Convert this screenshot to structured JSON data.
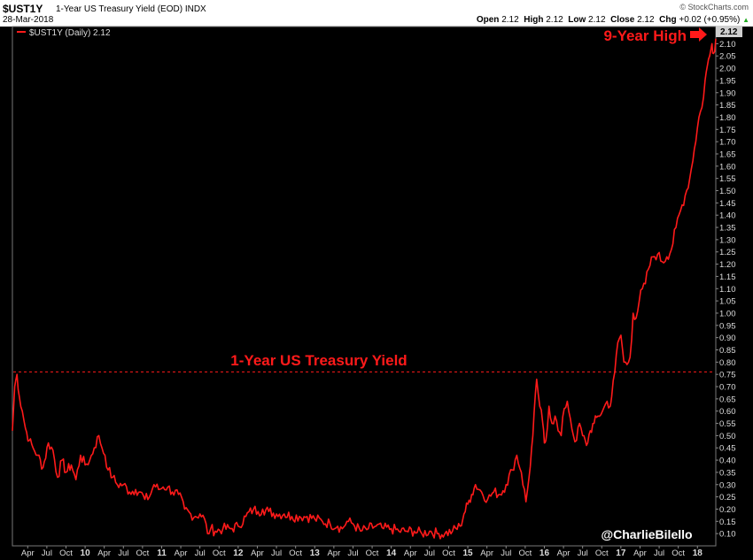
{
  "header": {
    "symbol": "$UST1Y",
    "description": "1-Year US Treasury Yield (EOD)",
    "exchange": "INDX",
    "date": "28-Mar-2018",
    "brand": "© StockCharts.com",
    "open_label": "Open",
    "open": "2.12",
    "high_label": "High",
    "high": "2.12",
    "low_label": "Low",
    "low": "2.12",
    "close_label": "Close",
    "close": "2.12",
    "chg_label": "Chg",
    "chg": "+0.02 (+0.95%)"
  },
  "legend": {
    "label": "$UST1Y (Daily) 2.12"
  },
  "annotations": {
    "high_label": "9-Year High",
    "reference_label": "1-Year US Treasury Yield",
    "last_value": "2.12",
    "credit": "@CharlieBilello"
  },
  "colors": {
    "series": "#ff1a1a",
    "background": "#000000",
    "price_box": "#cfcfcf"
  },
  "chart_data": {
    "type": "line",
    "title": "$UST1Y 1-Year US Treasury Yield (EOD)",
    "ylim": [
      0.05,
      2.17
    ],
    "grid": false,
    "legend_position": "top-left",
    "y_ticks": [
      "0.10",
      "0.15",
      "0.20",
      "0.25",
      "0.30",
      "0.35",
      "0.40",
      "0.45",
      "0.50",
      "0.55",
      "0.60",
      "0.65",
      "0.70",
      "0.75",
      "0.80",
      "0.85",
      "0.90",
      "0.95",
      "1.00",
      "1.05",
      "1.10",
      "1.15",
      "1.20",
      "1.25",
      "1.30",
      "1.35",
      "1.40",
      "1.45",
      "1.50",
      "1.55",
      "1.60",
      "1.65",
      "1.70",
      "1.75",
      "1.80",
      "1.85",
      "1.90",
      "1.95",
      "2.00",
      "2.05",
      "2.10"
    ],
    "x_ticks": [
      {
        "label": "Apr",
        "t": 2009.25
      },
      {
        "label": "Jul",
        "t": 2009.5
      },
      {
        "label": "Oct",
        "t": 2009.75
      },
      {
        "label": "10",
        "t": 2010.0,
        "year": true
      },
      {
        "label": "Apr",
        "t": 2010.25
      },
      {
        "label": "Jul",
        "t": 2010.5
      },
      {
        "label": "Oct",
        "t": 2010.75
      },
      {
        "label": "11",
        "t": 2011.0,
        "year": true
      },
      {
        "label": "Apr",
        "t": 2011.25
      },
      {
        "label": "Jul",
        "t": 2011.5
      },
      {
        "label": "Oct",
        "t": 2011.75
      },
      {
        "label": "12",
        "t": 2012.0,
        "year": true
      },
      {
        "label": "Apr",
        "t": 2012.25
      },
      {
        "label": "Jul",
        "t": 2012.5
      },
      {
        "label": "Oct",
        "t": 2012.75
      },
      {
        "label": "13",
        "t": 2013.0,
        "year": true
      },
      {
        "label": "Apr",
        "t": 2013.25
      },
      {
        "label": "Jul",
        "t": 2013.5
      },
      {
        "label": "Oct",
        "t": 2013.75
      },
      {
        "label": "14",
        "t": 2014.0,
        "year": true
      },
      {
        "label": "Apr",
        "t": 2014.25
      },
      {
        "label": "Jul",
        "t": 2014.5
      },
      {
        "label": "Oct",
        "t": 2014.75
      },
      {
        "label": "15",
        "t": 2015.0,
        "year": true
      },
      {
        "label": "Apr",
        "t": 2015.25
      },
      {
        "label": "Jul",
        "t": 2015.5
      },
      {
        "label": "Oct",
        "t": 2015.75
      },
      {
        "label": "16",
        "t": 2016.0,
        "year": true
      },
      {
        "label": "Apr",
        "t": 2016.25
      },
      {
        "label": "Jul",
        "t": 2016.5
      },
      {
        "label": "Oct",
        "t": 2016.75
      },
      {
        "label": "17",
        "t": 2017.0,
        "year": true
      },
      {
        "label": "Apr",
        "t": 2017.25
      },
      {
        "label": "Jul",
        "t": 2017.5
      },
      {
        "label": "Oct",
        "t": 2017.75
      },
      {
        "label": "18",
        "t": 2018.0,
        "year": true
      }
    ],
    "xlim": [
      2009.05,
      2018.24
    ],
    "reference_line": {
      "value": 0.76
    },
    "series": [
      {
        "name": "$UST1Y (Daily)",
        "x": [
          2009.05,
          2009.08,
          2009.11,
          2009.14,
          2009.18,
          2009.22,
          2009.27,
          2009.32,
          2009.38,
          2009.45,
          2009.52,
          2009.58,
          2009.64,
          2009.7,
          2009.75,
          2009.82,
          2009.88,
          2009.94,
          2010.0,
          2010.06,
          2010.12,
          2010.18,
          2010.22,
          2010.26,
          2010.3,
          2010.36,
          2010.42,
          2010.5,
          2010.58,
          2010.66,
          2010.72,
          2010.78,
          2010.84,
          2010.9,
          2010.96,
          2011.02,
          2011.08,
          2011.14,
          2011.22,
          2011.3,
          2011.38,
          2011.44,
          2011.5,
          2011.56,
          2011.6,
          2011.64,
          2011.7,
          2011.8,
          2011.9,
          2012.0,
          2012.1,
          2012.2,
          2012.26,
          2012.32,
          2012.4,
          2012.5,
          2012.6,
          2012.7,
          2012.8,
          2012.9,
          2013.0,
          2013.1,
          2013.2,
          2013.3,
          2013.36,
          2013.42,
          2013.5,
          2013.6,
          2013.7,
          2013.8,
          2013.9,
          2014.0,
          2014.1,
          2014.2,
          2014.3,
          2014.4,
          2014.5,
          2014.6,
          2014.7,
          2014.8,
          2014.9,
          2014.95,
          2015.0,
          2015.05,
          2015.1,
          2015.18,
          2015.26,
          2015.34,
          2015.42,
          2015.5,
          2015.58,
          2015.64,
          2015.7,
          2015.76,
          2015.8,
          2015.85,
          2015.9,
          2015.94,
          2015.98,
          2016.0,
          2016.02,
          2016.06,
          2016.1,
          2016.14,
          2016.18,
          2016.22,
          2016.26,
          2016.3,
          2016.34,
          2016.38,
          2016.42,
          2016.46,
          2016.5,
          2016.55,
          2016.6,
          2016.65,
          2016.7,
          2016.76,
          2016.82,
          2016.86,
          2016.88,
          2016.92,
          2016.96,
          2017.0,
          2017.04,
          2017.08,
          2017.12,
          2017.16,
          2017.2,
          2017.24,
          2017.28,
          2017.32,
          2017.36,
          2017.42,
          2017.48,
          2017.54,
          2017.6,
          2017.66,
          2017.72,
          2017.78,
          2017.84,
          2017.9,
          2017.96,
          2018.02,
          2018.06,
          2018.1,
          2018.13,
          2018.16,
          2018.19,
          2018.21,
          2018.24
        ],
        "values": [
          0.52,
          0.7,
          0.75,
          0.66,
          0.6,
          0.53,
          0.48,
          0.45,
          0.42,
          0.37,
          0.47,
          0.44,
          0.33,
          0.4,
          0.35,
          0.38,
          0.32,
          0.42,
          0.38,
          0.4,
          0.45,
          0.5,
          0.45,
          0.42,
          0.36,
          0.33,
          0.3,
          0.3,
          0.27,
          0.28,
          0.27,
          0.24,
          0.25,
          0.3,
          0.28,
          0.29,
          0.29,
          0.27,
          0.26,
          0.2,
          0.18,
          0.17,
          0.18,
          0.16,
          0.1,
          0.12,
          0.11,
          0.12,
          0.12,
          0.13,
          0.17,
          0.2,
          0.19,
          0.2,
          0.19,
          0.18,
          0.18,
          0.17,
          0.17,
          0.17,
          0.16,
          0.15,
          0.14,
          0.13,
          0.12,
          0.15,
          0.14,
          0.11,
          0.12,
          0.13,
          0.12,
          0.12,
          0.11,
          0.11,
          0.11,
          0.1,
          0.11,
          0.1,
          0.1,
          0.11,
          0.13,
          0.18,
          0.22,
          0.26,
          0.3,
          0.27,
          0.24,
          0.27,
          0.26,
          0.3,
          0.36,
          0.42,
          0.35,
          0.23,
          0.33,
          0.5,
          0.73,
          0.62,
          0.55,
          0.47,
          0.48,
          0.62,
          0.55,
          0.58,
          0.52,
          0.5,
          0.61,
          0.64,
          0.57,
          0.5,
          0.48,
          0.55,
          0.5,
          0.46,
          0.52,
          0.55,
          0.58,
          0.6,
          0.64,
          0.62,
          0.66,
          0.76,
          0.88,
          0.91,
          0.8,
          0.79,
          0.82,
          1.0,
          0.98,
          1.05,
          1.1,
          1.12,
          1.18,
          1.23,
          1.24,
          1.21,
          1.23,
          1.26,
          1.35,
          1.42,
          1.48,
          1.55,
          1.67,
          1.8,
          1.84,
          1.95,
          2.01,
          2.05,
          2.1,
          2.06,
          2.12
        ]
      }
    ]
  }
}
